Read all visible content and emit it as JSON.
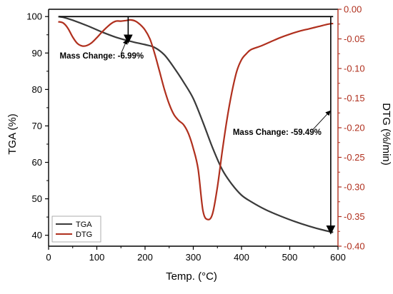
{
  "chart_data": {
    "type": "line",
    "title": "",
    "xlabel": "Temp. (°C)",
    "ylabel_left": "TGA (%)",
    "ylabel_right": "DTG (%/min)",
    "xlim": [
      0,
      600
    ],
    "ylim_left": [
      37,
      102
    ],
    "ylim_right": [
      -0.4,
      0.0
    ],
    "x_ticks": [
      0,
      100,
      200,
      300,
      400,
      500,
      600
    ],
    "y_left_ticks": [
      40,
      50,
      60,
      70,
      80,
      90,
      100
    ],
    "y_right_ticks": [
      0.0,
      -0.05,
      -0.1,
      -0.15,
      -0.2,
      -0.25,
      -0.3,
      -0.35,
      -0.4
    ],
    "x_tick_labels": [
      "0",
      "100",
      "200",
      "300",
      "400",
      "500",
      "600"
    ],
    "y_left_tick_labels": [
      "40",
      "50",
      "60",
      "70",
      "80",
      "90",
      "100"
    ],
    "y_right_tick_labels": [
      "0.00",
      "-0.05",
      "-0.10",
      "-0.15",
      "-0.20",
      "-0.25",
      "-0.30",
      "-0.35",
      "-0.40"
    ],
    "grid": false,
    "legend_position": "bottom-left",
    "series": [
      {
        "name": "TGA",
        "axis": "left",
        "color": "#3a3a3a",
        "x": [
          20,
          30,
          50,
          80,
          110,
          140,
          170,
          200,
          220,
          240,
          260,
          280,
          300,
          320,
          340,
          360,
          380,
          400,
          420,
          450,
          480,
          510,
          540,
          570,
          590
        ],
        "y": [
          100,
          99.8,
          99,
          97.5,
          95.8,
          94.3,
          93.2,
          92.3,
          91.5,
          89.5,
          86,
          82,
          77.5,
          71,
          64,
          58,
          54,
          51,
          49.2,
          47,
          45.3,
          43.8,
          42.5,
          41.4,
          40.8
        ]
      },
      {
        "name": "DTG",
        "axis": "right",
        "color": "#b0301e",
        "x": [
          20,
          30,
          40,
          50,
          60,
          70,
          80,
          90,
          100,
          110,
          120,
          130,
          140,
          150,
          160,
          170,
          180,
          190,
          200,
          210,
          220,
          230,
          240,
          250,
          260,
          270,
          280,
          290,
          300,
          310,
          320,
          330,
          340,
          350,
          360,
          370,
          380,
          390,
          400,
          410,
          420,
          440,
          460,
          480,
          500,
          520,
          540,
          560,
          580,
          590
        ],
        "y": [
          -0.021,
          -0.023,
          -0.032,
          -0.047,
          -0.058,
          -0.062,
          -0.061,
          -0.056,
          -0.048,
          -0.039,
          -0.031,
          -0.024,
          -0.02,
          -0.02,
          -0.019,
          -0.018,
          -0.02,
          -0.026,
          -0.035,
          -0.05,
          -0.075,
          -0.105,
          -0.135,
          -0.16,
          -0.178,
          -0.188,
          -0.195,
          -0.21,
          -0.235,
          -0.27,
          -0.34,
          -0.355,
          -0.345,
          -0.3,
          -0.24,
          -0.185,
          -0.14,
          -0.105,
          -0.085,
          -0.075,
          -0.068,
          -0.062,
          -0.055,
          -0.048,
          -0.042,
          -0.037,
          -0.033,
          -0.029,
          -0.025,
          -0.024
        ]
      }
    ],
    "annotations": [
      {
        "text": "Mass Change: -6.99%",
        "x_from": 165,
        "x_to": 165,
        "y_from": 100,
        "y_to": 93.2,
        "label_x": 23,
        "label_y": 88.5
      },
      {
        "text": "Mass Change: -59.49%",
        "x_from": 585,
        "x_to": 585,
        "y_from": 100,
        "y_to": 40.8,
        "label_x": 382,
        "label_y": 67.5
      }
    ]
  }
}
